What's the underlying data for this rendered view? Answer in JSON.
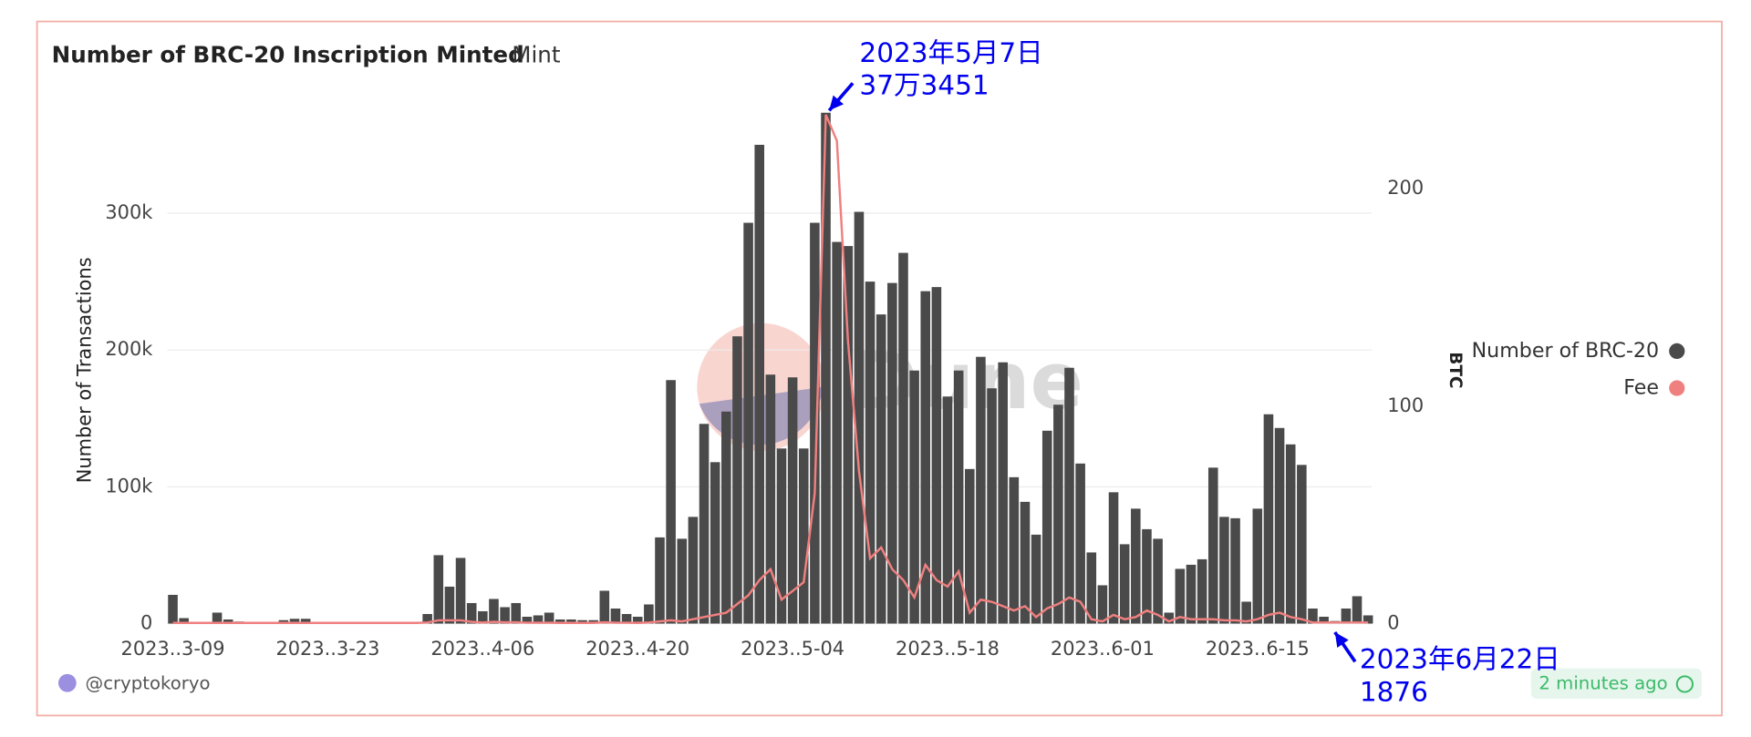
{
  "chart_data": {
    "type": "bar",
    "title": "Number of BRC-20 Inscription Minted",
    "tab": "Mint",
    "watermark": "Dune",
    "y_label": "Number of Transactions",
    "y2_label": "BTC",
    "categories": [
      "2023-03-09",
      "2023-03-10",
      "2023-03-11",
      "2023-03-12",
      "2023-03-13",
      "2023-03-14",
      "2023-03-15",
      "2023-03-16",
      "2023-03-17",
      "2023-03-18",
      "2023-03-19",
      "2023-03-20",
      "2023-03-21",
      "2023-03-22",
      "2023-03-23",
      "2023-03-24",
      "2023-03-25",
      "2023-03-26",
      "2023-03-27",
      "2023-03-28",
      "2023-03-29",
      "2023-03-30",
      "2023-03-31",
      "2023-04-01",
      "2023-04-02",
      "2023-04-03",
      "2023-04-04",
      "2023-04-05",
      "2023-04-06",
      "2023-04-07",
      "2023-04-08",
      "2023-04-09",
      "2023-04-10",
      "2023-04-11",
      "2023-04-12",
      "2023-04-13",
      "2023-04-14",
      "2023-04-15",
      "2023-04-16",
      "2023-04-17",
      "2023-04-18",
      "2023-04-19",
      "2023-04-20",
      "2023-04-21",
      "2023-04-22",
      "2023-04-23",
      "2023-04-24",
      "2023-04-25",
      "2023-04-26",
      "2023-04-27",
      "2023-04-28",
      "2023-04-29",
      "2023-04-30",
      "2023-05-01",
      "2023-05-02",
      "2023-05-03",
      "2023-05-04",
      "2023-05-05",
      "2023-05-06",
      "2023-05-07",
      "2023-05-08",
      "2023-05-09",
      "2023-05-10",
      "2023-05-11",
      "2023-05-12",
      "2023-05-13",
      "2023-05-14",
      "2023-05-15",
      "2023-05-16",
      "2023-05-17",
      "2023-05-18",
      "2023-05-19",
      "2023-05-20",
      "2023-05-21",
      "2023-05-22",
      "2023-05-23",
      "2023-05-24",
      "2023-05-25",
      "2023-05-26",
      "2023-05-27",
      "2023-05-28",
      "2023-05-29",
      "2023-05-30",
      "2023-05-31",
      "2023-06-01",
      "2023-06-02",
      "2023-06-03",
      "2023-06-04",
      "2023-06-05",
      "2023-06-06",
      "2023-06-07",
      "2023-06-08",
      "2023-06-09",
      "2023-06-10",
      "2023-06-11",
      "2023-06-12",
      "2023-06-13",
      "2023-06-14",
      "2023-06-15",
      "2023-06-16",
      "2023-06-17",
      "2023-06-18",
      "2023-06-19",
      "2023-06-20",
      "2023-06-21",
      "2023-06-22",
      "2023-06-23",
      "2023-06-24",
      "2023-06-25"
    ],
    "series": [
      {
        "name": "Number of BRC-20",
        "color": "#4a4a4a",
        "values": [
          21000,
          4000,
          1000,
          500,
          8000,
          3000,
          1500,
          500,
          500,
          1000,
          2500,
          3500,
          3500,
          300,
          300,
          300,
          300,
          300,
          300,
          300,
          300,
          300,
          300,
          7000,
          50000,
          27000,
          48000,
          15000,
          9000,
          18000,
          12000,
          15000,
          5000,
          6000,
          8000,
          3000,
          3000,
          2500,
          2500,
          24000,
          11000,
          7000,
          5000,
          14000,
          63000,
          178000,
          62000,
          78000,
          146000,
          118000,
          155000,
          210000,
          293000,
          350000,
          182000,
          128000,
          180000,
          128000,
          293000,
          373451,
          279000,
          276000,
          301000,
          250000,
          226000,
          249000,
          271000,
          185000,
          243000,
          246000,
          166000,
          185000,
          113000,
          195000,
          172000,
          191000,
          107000,
          89000,
          65000,
          141000,
          160000,
          187000,
          117000,
          52000,
          28000,
          96000,
          58000,
          84000,
          69000,
          62000,
          8000,
          40000,
          43000,
          47000,
          114000,
          78000,
          77000,
          16000,
          84000,
          153000,
          143000,
          131000,
          116000,
          11000,
          5000,
          1876,
          11000,
          20000,
          6000
        ]
      },
      {
        "name": "Fee",
        "color": "#f08080",
        "axis": "y2",
        "values": [
          0.3,
          0.3,
          0.3,
          0.3,
          0.3,
          0.3,
          0.3,
          0.3,
          0.3,
          0.3,
          0.3,
          0.3,
          0.3,
          0.3,
          0.3,
          0.3,
          0.3,
          0.3,
          0.3,
          0.3,
          0.3,
          0.3,
          0.3,
          0.5,
          1.5,
          1.5,
          1.5,
          0.8,
          0.5,
          0.8,
          0.6,
          0.6,
          0.4,
          0.4,
          0.4,
          0.3,
          0.3,
          0.3,
          0.3,
          0.6,
          0.4,
          0.4,
          0.3,
          0.5,
          1,
          1.5,
          1,
          2,
          3,
          4,
          5,
          9,
          13,
          20,
          25,
          11,
          15,
          19,
          60,
          234,
          222,
          130,
          70,
          30,
          35,
          25,
          20,
          12,
          27,
          20,
          17,
          24,
          5,
          11,
          10,
          8,
          6,
          8,
          3,
          7,
          9,
          12,
          10,
          2,
          1,
          4,
          2,
          3,
          6,
          4,
          1,
          3,
          2,
          2,
          2,
          1.5,
          1.5,
          1,
          2,
          4,
          5,
          3,
          2,
          0.5,
          0.5,
          0.5,
          0.5,
          0.5,
          0.5
        ]
      }
    ],
    "ylim": [
      0,
      380000
    ],
    "yticks": [
      0,
      {
        "value": 100000,
        "label": "100k"
      },
      {
        "value": 200000,
        "label": "200k"
      },
      {
        "value": 300000,
        "label": "300k"
      }
    ],
    "y2lim": [
      0,
      239
    ],
    "y2ticks": [
      0,
      100,
      200
    ],
    "xticks": [
      {
        "value": "2023-03-09",
        "label": "2023..3-09"
      },
      {
        "value": "2023-03-23",
        "label": "2023..3-23"
      },
      {
        "value": "2023-04-06",
        "label": "2023..4-06"
      },
      {
        "value": "2023-04-20",
        "label": "2023..4-20"
      },
      {
        "value": "2023-05-04",
        "label": "2023..5-04"
      },
      {
        "value": "2023-05-18",
        "label": "2023..5-18"
      },
      {
        "value": "2023-06-01",
        "label": "2023..6-01"
      },
      {
        "value": "2023-06-15",
        "label": "2023..6-15"
      }
    ],
    "grid": true,
    "legend": "right",
    "annotations": [
      {
        "date": "2023年5月7日",
        "value_label": "37万3451",
        "at": "2023-05-07"
      },
      {
        "date": "2023年6月22日",
        "value_label": "1876",
        "at": "2023-06-22"
      }
    ]
  },
  "footer": {
    "author": "@cryptokoryo",
    "updated": "2 minutes ago"
  }
}
